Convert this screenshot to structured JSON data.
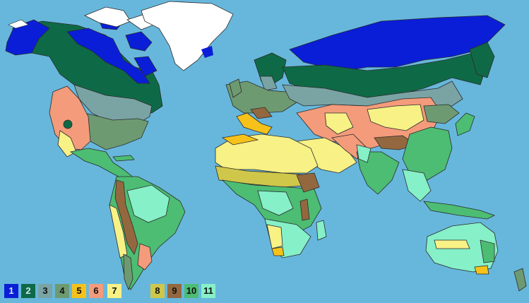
{
  "map": {
    "colors": {
      "ocean": "#67b7dc",
      "ice": "#ffffff",
      "outline": "#2a2a2a"
    },
    "legend": [
      {
        "label": "1",
        "color": "#0a1ed8"
      },
      {
        "label": "2",
        "color": "#0e6a46"
      },
      {
        "label": "3",
        "color": "#7aa3a4"
      },
      {
        "label": "4",
        "color": "#6e9a72"
      },
      {
        "label": "5",
        "color": "#f6c21a"
      },
      {
        "label": "6",
        "color": "#f39b7b"
      },
      {
        "label": "7",
        "color": "#f7f186"
      },
      {
        "label": "8",
        "color": "#cfc74a"
      },
      {
        "label": "9",
        "color": "#94683f"
      },
      {
        "label": "10",
        "color": "#4cbd73"
      },
      {
        "label": "11",
        "color": "#86f0c8"
      }
    ]
  }
}
